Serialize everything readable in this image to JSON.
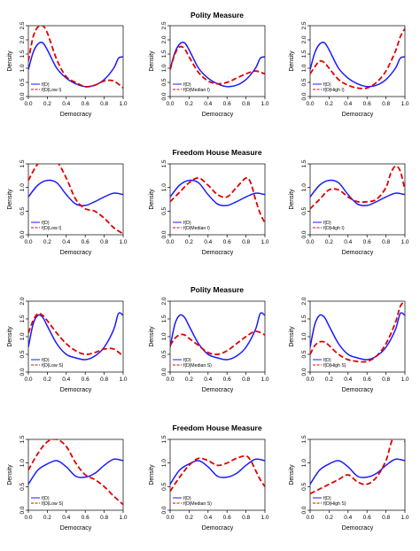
{
  "row_titles": [
    "Polity Measure",
    "Freedom House Measure",
    "Polity Measure",
    "Freedom House Measure"
  ],
  "colors": {
    "fD": "#1a1aff",
    "conditional": "#e00000"
  },
  "chart_data": [
    {
      "type": "line",
      "title": "Polity Measure",
      "xlabel": "Democracy",
      "ylabel": "Density",
      "xlim": [
        0,
        1
      ],
      "ylim": [
        0,
        2.5
      ],
      "x_ticks": [
        0.0,
        0.2,
        0.4,
        0.6,
        0.8,
        1.0
      ],
      "y_ticks": [
        0.0,
        0.5,
        1.0,
        1.5,
        2.0,
        2.5
      ],
      "legend": "bottom-left",
      "series": [
        {
          "name": "f(D)",
          "style": "solid",
          "x": [
            0,
            0.05,
            0.1,
            0.15,
            0.2,
            0.3,
            0.4,
            0.5,
            0.6,
            0.7,
            0.8,
            0.9,
            0.95,
            1.0
          ],
          "y": [
            0.95,
            1.55,
            1.85,
            1.9,
            1.65,
            1.0,
            0.65,
            0.45,
            0.35,
            0.4,
            0.6,
            1.0,
            1.35,
            1.4
          ]
        },
        {
          "name": "f(D|Low I)",
          "style": "dashed",
          "x": [
            0,
            0.05,
            0.1,
            0.15,
            0.2,
            0.3,
            0.4,
            0.5,
            0.6,
            0.7,
            0.8,
            0.9,
            1.0
          ],
          "y": [
            1.25,
            2.1,
            2.45,
            2.5,
            2.25,
            1.3,
            0.7,
            0.5,
            0.35,
            0.4,
            0.55,
            0.55,
            0.3
          ]
        }
      ]
    },
    {
      "type": "line",
      "title": "",
      "xlabel": "Democracy",
      "ylabel": "Density",
      "xlim": [
        0,
        1
      ],
      "ylim": [
        0,
        2.5
      ],
      "x_ticks": [
        0.0,
        0.2,
        0.4,
        0.6,
        0.8,
        1.0
      ],
      "y_ticks": [
        0.0,
        0.5,
        1.0,
        1.5,
        2.0,
        2.5
      ],
      "legend": "bottom-left",
      "series": [
        {
          "name": "f(D)",
          "style": "solid",
          "x": [
            0,
            0.05,
            0.1,
            0.15,
            0.2,
            0.3,
            0.4,
            0.5,
            0.6,
            0.7,
            0.8,
            0.9,
            0.95,
            1.0
          ],
          "y": [
            0.95,
            1.55,
            1.85,
            1.9,
            1.65,
            1.0,
            0.65,
            0.45,
            0.35,
            0.4,
            0.6,
            1.0,
            1.35,
            1.4
          ]
        },
        {
          "name": "f(D|Median I)",
          "style": "dashed",
          "x": [
            0,
            0.05,
            0.1,
            0.15,
            0.2,
            0.3,
            0.4,
            0.5,
            0.6,
            0.7,
            0.8,
            0.9,
            1.0
          ],
          "y": [
            0.95,
            1.5,
            1.75,
            1.7,
            1.4,
            0.85,
            0.55,
            0.45,
            0.5,
            0.65,
            0.8,
            0.9,
            0.8
          ]
        }
      ]
    },
    {
      "type": "line",
      "title": "",
      "xlabel": "Democracy",
      "ylabel": "Density",
      "xlim": [
        0,
        1
      ],
      "ylim": [
        0,
        2.5
      ],
      "x_ticks": [
        0.0,
        0.2,
        0.4,
        0.6,
        0.8,
        1.0
      ],
      "y_ticks": [
        0.0,
        0.5,
        1.0,
        1.5,
        2.0,
        2.5
      ],
      "legend": "bottom-left",
      "series": [
        {
          "name": "f(D)",
          "style": "solid",
          "x": [
            0,
            0.05,
            0.1,
            0.15,
            0.2,
            0.3,
            0.4,
            0.5,
            0.6,
            0.7,
            0.8,
            0.9,
            0.95,
            1.0
          ],
          "y": [
            0.95,
            1.55,
            1.85,
            1.9,
            1.65,
            1.0,
            0.65,
            0.45,
            0.35,
            0.4,
            0.6,
            1.0,
            1.35,
            1.4
          ]
        },
        {
          "name": "f(D|High I)",
          "style": "dashed",
          "x": [
            0,
            0.05,
            0.1,
            0.15,
            0.2,
            0.3,
            0.4,
            0.5,
            0.6,
            0.7,
            0.8,
            0.9,
            0.95,
            1.0
          ],
          "y": [
            0.8,
            1.05,
            1.25,
            1.2,
            1.0,
            0.6,
            0.4,
            0.3,
            0.3,
            0.5,
            0.9,
            1.6,
            2.1,
            2.4
          ]
        }
      ]
    },
    {
      "type": "line",
      "title": "Freedom House Measure",
      "xlabel": "Democracy",
      "ylabel": "Density",
      "xlim": [
        0,
        1
      ],
      "ylim": [
        0,
        1.5
      ],
      "x_ticks": [
        0.0,
        0.2,
        0.4,
        0.6,
        0.8,
        1.0
      ],
      "y_ticks": [
        0.0,
        0.5,
        1.0,
        1.5
      ],
      "legend": "bottom-left",
      "series": [
        {
          "name": "f(D)",
          "style": "solid",
          "x": [
            0,
            0.1,
            0.2,
            0.3,
            0.4,
            0.5,
            0.6,
            0.7,
            0.8,
            0.9,
            1.0
          ],
          "y": [
            0.8,
            1.05,
            1.15,
            1.1,
            0.85,
            0.65,
            0.62,
            0.7,
            0.8,
            0.88,
            0.85
          ]
        },
        {
          "name": "f(D|Low I)",
          "style": "dashed",
          "x": [
            0,
            0.1,
            0.2,
            0.3,
            0.4,
            0.5,
            0.6,
            0.7,
            0.8,
            0.9,
            1.0
          ],
          "y": [
            1.15,
            1.5,
            1.6,
            1.55,
            1.2,
            0.75,
            0.55,
            0.5,
            0.35,
            0.15,
            0.02
          ]
        }
      ]
    },
    {
      "type": "line",
      "title": "",
      "xlabel": "Democracy",
      "ylabel": "Density",
      "xlim": [
        0,
        1
      ],
      "ylim": [
        0,
        1.5
      ],
      "x_ticks": [
        0.0,
        0.2,
        0.4,
        0.6,
        0.8,
        1.0
      ],
      "y_ticks": [
        0.0,
        0.5,
        1.0,
        1.5
      ],
      "legend": "bottom-left",
      "series": [
        {
          "name": "f(D)",
          "style": "solid",
          "x": [
            0,
            0.1,
            0.2,
            0.3,
            0.4,
            0.5,
            0.6,
            0.7,
            0.8,
            0.9,
            1.0
          ],
          "y": [
            0.8,
            1.05,
            1.15,
            1.1,
            0.85,
            0.65,
            0.62,
            0.7,
            0.8,
            0.88,
            0.85
          ]
        },
        {
          "name": "f(D|Median I)",
          "style": "dashed",
          "x": [
            0,
            0.1,
            0.2,
            0.3,
            0.4,
            0.5,
            0.6,
            0.7,
            0.8,
            0.85,
            0.9,
            0.95,
            1.0
          ],
          "y": [
            0.7,
            0.9,
            1.1,
            1.2,
            1.05,
            0.85,
            0.8,
            1.0,
            1.2,
            1.1,
            0.75,
            0.45,
            0.25
          ]
        }
      ]
    },
    {
      "type": "line",
      "title": "",
      "xlabel": "Democracy",
      "ylabel": "Density",
      "xlim": [
        0,
        1
      ],
      "ylim": [
        0,
        1.5
      ],
      "x_ticks": [
        0.0,
        0.2,
        0.4,
        0.6,
        0.8,
        1.0
      ],
      "y_ticks": [
        0.0,
        0.5,
        1.0,
        1.5
      ],
      "legend": "bottom-left",
      "series": [
        {
          "name": "f(D)",
          "style": "solid",
          "x": [
            0,
            0.1,
            0.2,
            0.3,
            0.4,
            0.5,
            0.6,
            0.7,
            0.8,
            0.9,
            1.0
          ],
          "y": [
            0.8,
            1.05,
            1.15,
            1.1,
            0.85,
            0.65,
            0.62,
            0.7,
            0.8,
            0.88,
            0.85
          ]
        },
        {
          "name": "f(D|High I)",
          "style": "dashed",
          "x": [
            0,
            0.1,
            0.2,
            0.3,
            0.4,
            0.5,
            0.6,
            0.7,
            0.8,
            0.85,
            0.9,
            0.95,
            1.0
          ],
          "y": [
            0.55,
            0.75,
            0.95,
            0.95,
            0.8,
            0.7,
            0.7,
            0.75,
            1.0,
            1.3,
            1.45,
            1.35,
            0.95
          ]
        }
      ]
    },
    {
      "type": "line",
      "title": "Polity Measure",
      "xlabel": "Democracy",
      "ylabel": "Density",
      "xlim": [
        0,
        1
      ],
      "ylim": [
        0,
        2.0
      ],
      "x_ticks": [
        0.0,
        0.2,
        0.4,
        0.6,
        0.8,
        1.0
      ],
      "y_ticks": [
        0.0,
        0.5,
        1.0,
        1.5,
        2.0
      ],
      "legend": "bottom-left",
      "series": [
        {
          "name": "f(D)",
          "style": "solid",
          "x": [
            0,
            0.05,
            0.1,
            0.15,
            0.2,
            0.3,
            0.4,
            0.5,
            0.6,
            0.7,
            0.8,
            0.9,
            0.95,
            1.0
          ],
          "y": [
            0.7,
            1.35,
            1.6,
            1.55,
            1.3,
            0.8,
            0.5,
            0.4,
            0.35,
            0.45,
            0.7,
            1.2,
            1.65,
            1.6
          ]
        },
        {
          "name": "f(D|Low S)",
          "style": "dashed",
          "x": [
            0,
            0.05,
            0.1,
            0.15,
            0.2,
            0.3,
            0.4,
            0.5,
            0.6,
            0.7,
            0.8,
            0.9,
            1.0
          ],
          "y": [
            1.1,
            1.45,
            1.65,
            1.6,
            1.45,
            1.1,
            0.8,
            0.6,
            0.5,
            0.55,
            0.65,
            0.65,
            0.45
          ]
        }
      ]
    },
    {
      "type": "line",
      "title": "",
      "xlabel": "Democracy",
      "ylabel": "Density",
      "xlim": [
        0,
        1
      ],
      "ylim": [
        0,
        2.0
      ],
      "x_ticks": [
        0.0,
        0.2,
        0.4,
        0.6,
        0.8,
        1.0
      ],
      "y_ticks": [
        0.0,
        0.5,
        1.0,
        1.5,
        2.0
      ],
      "legend": "bottom-left",
      "series": [
        {
          "name": "f(D)",
          "style": "solid",
          "x": [
            0,
            0.05,
            0.1,
            0.15,
            0.2,
            0.3,
            0.4,
            0.5,
            0.6,
            0.7,
            0.8,
            0.9,
            0.95,
            1.0
          ],
          "y": [
            0.7,
            1.35,
            1.6,
            1.55,
            1.3,
            0.8,
            0.5,
            0.4,
            0.35,
            0.45,
            0.7,
            1.2,
            1.65,
            1.6
          ]
        },
        {
          "name": "f(D|Median S)",
          "style": "dashed",
          "x": [
            0,
            0.05,
            0.1,
            0.15,
            0.2,
            0.3,
            0.4,
            0.5,
            0.6,
            0.7,
            0.8,
            0.9,
            1.0
          ],
          "y": [
            0.75,
            0.95,
            1.05,
            1.05,
            0.95,
            0.75,
            0.55,
            0.5,
            0.6,
            0.8,
            1.0,
            1.15,
            1.05
          ]
        }
      ]
    },
    {
      "type": "line",
      "title": "",
      "xlabel": "Democracy",
      "ylabel": "Density",
      "xlim": [
        0,
        1
      ],
      "ylim": [
        0,
        2.0
      ],
      "x_ticks": [
        0.0,
        0.2,
        0.4,
        0.6,
        0.8,
        1.0
      ],
      "y_ticks": [
        0.0,
        0.5,
        1.0,
        1.5,
        2.0
      ],
      "legend": "bottom-left",
      "series": [
        {
          "name": "f(D)",
          "style": "solid",
          "x": [
            0,
            0.05,
            0.1,
            0.15,
            0.2,
            0.3,
            0.4,
            0.5,
            0.6,
            0.7,
            0.8,
            0.9,
            0.95,
            1.0
          ],
          "y": [
            0.7,
            1.35,
            1.6,
            1.55,
            1.3,
            0.8,
            0.5,
            0.4,
            0.35,
            0.45,
            0.7,
            1.2,
            1.65,
            1.6
          ]
        },
        {
          "name": "f(D|High S)",
          "style": "dashed",
          "x": [
            0,
            0.05,
            0.1,
            0.15,
            0.2,
            0.3,
            0.4,
            0.5,
            0.6,
            0.7,
            0.8,
            0.9,
            0.95,
            1.0
          ],
          "y": [
            0.5,
            0.75,
            0.85,
            0.85,
            0.75,
            0.5,
            0.35,
            0.3,
            0.3,
            0.45,
            0.8,
            1.4,
            1.85,
            2.0
          ]
        }
      ]
    },
    {
      "type": "line",
      "title": "Freedom House Measure",
      "xlabel": "Democracy",
      "ylabel": "Density",
      "xlim": [
        0,
        1
      ],
      "ylim": [
        0,
        1.5
      ],
      "x_ticks": [
        0.0,
        0.2,
        0.4,
        0.6,
        0.8,
        1.0
      ],
      "y_ticks": [
        0.0,
        0.5,
        1.0,
        1.5
      ],
      "legend": "bottom-left",
      "series": [
        {
          "name": "f(D)",
          "style": "solid",
          "x": [
            0,
            0.1,
            0.2,
            0.3,
            0.4,
            0.5,
            0.6,
            0.7,
            0.8,
            0.9,
            1.0
          ],
          "y": [
            0.55,
            0.85,
            0.98,
            1.05,
            0.92,
            0.72,
            0.7,
            0.78,
            0.95,
            1.08,
            1.05
          ]
        },
        {
          "name": "f(D|Low S)",
          "style": "dashed",
          "x": [
            0,
            0.1,
            0.2,
            0.3,
            0.4,
            0.5,
            0.6,
            0.7,
            0.8,
            0.9,
            1.0
          ],
          "y": [
            0.85,
            1.2,
            1.45,
            1.5,
            1.35,
            1.0,
            0.75,
            0.65,
            0.5,
            0.3,
            0.12
          ]
        }
      ]
    },
    {
      "type": "line",
      "title": "",
      "xlabel": "Democracy",
      "ylabel": "Density",
      "xlim": [
        0,
        1
      ],
      "ylim": [
        0,
        1.5
      ],
      "x_ticks": [
        0.0,
        0.2,
        0.4,
        0.6,
        0.8,
        1.0
      ],
      "y_ticks": [
        0.0,
        0.5,
        1.0,
        1.5
      ],
      "legend": "bottom-left",
      "series": [
        {
          "name": "f(D)",
          "style": "solid",
          "x": [
            0,
            0.1,
            0.2,
            0.3,
            0.4,
            0.5,
            0.6,
            0.7,
            0.8,
            0.9,
            1.0
          ],
          "y": [
            0.55,
            0.85,
            0.98,
            1.05,
            0.92,
            0.72,
            0.7,
            0.78,
            0.95,
            1.08,
            1.05
          ]
        },
        {
          "name": "f(D|Median S)",
          "style": "dashed",
          "x": [
            0,
            0.1,
            0.2,
            0.3,
            0.4,
            0.5,
            0.6,
            0.7,
            0.8,
            0.85,
            0.9,
            0.95,
            1.0
          ],
          "y": [
            0.4,
            0.7,
            0.95,
            1.1,
            1.05,
            0.95,
            1.0,
            1.1,
            1.15,
            1.05,
            0.85,
            0.65,
            0.5
          ]
        }
      ]
    },
    {
      "type": "line",
      "title": "",
      "xlabel": "Democracy",
      "ylabel": "Density",
      "xlim": [
        0,
        1
      ],
      "ylim": [
        0,
        1.5
      ],
      "x_ticks": [
        0.0,
        0.2,
        0.4,
        0.6,
        0.8,
        1.0
      ],
      "y_ticks": [
        0.0,
        0.5,
        1.0,
        1.5
      ],
      "legend": "bottom-left",
      "series": [
        {
          "name": "f(D)",
          "style": "solid",
          "x": [
            0,
            0.1,
            0.2,
            0.3,
            0.4,
            0.5,
            0.6,
            0.7,
            0.8,
            0.9,
            1.0
          ],
          "y": [
            0.55,
            0.85,
            0.98,
            1.05,
            0.92,
            0.72,
            0.7,
            0.78,
            0.95,
            1.08,
            1.05
          ]
        },
        {
          "name": "f(D|High S)",
          "style": "dashed",
          "x": [
            0,
            0.1,
            0.2,
            0.3,
            0.4,
            0.5,
            0.6,
            0.7,
            0.8,
            0.85,
            0.9,
            0.95,
            1.0
          ],
          "y": [
            0.35,
            0.45,
            0.55,
            0.65,
            0.75,
            0.6,
            0.55,
            0.7,
            1.05,
            1.4,
            1.65,
            1.7,
            1.45
          ]
        }
      ]
    }
  ]
}
